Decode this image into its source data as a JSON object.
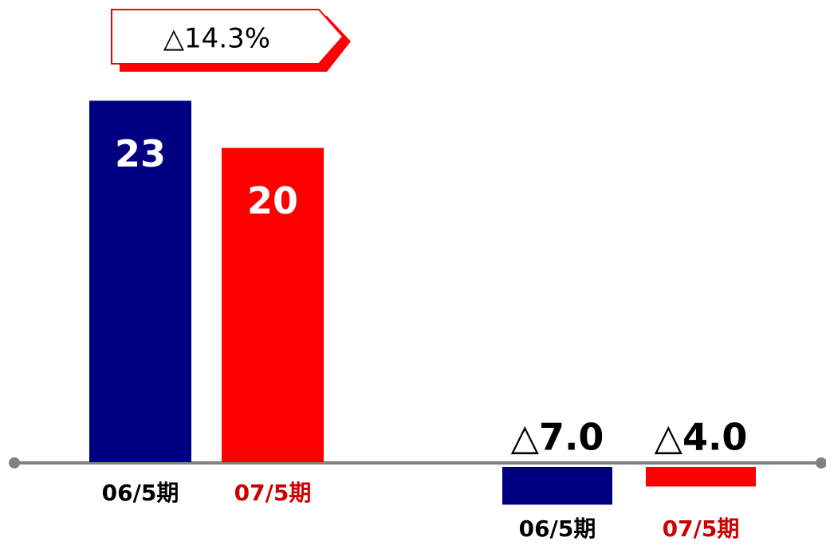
{
  "chart_data": [
    {
      "type": "bar",
      "annotation": "△14.3%",
      "categories": [
        "06/5期",
        "07/5期"
      ],
      "values": [
        23,
        20
      ],
      "colors": [
        "#000080",
        "#ff0000"
      ],
      "category_colors": [
        "#000000",
        "#cc0000"
      ],
      "ylim": [
        0,
        25
      ]
    },
    {
      "type": "bar",
      "categories": [
        "06/5期",
        "07/5期"
      ],
      "values": [
        -7.0,
        -4.0
      ],
      "value_labels": [
        "△7.0",
        "△4.0"
      ],
      "colors": [
        "#000080",
        "#ff0000"
      ],
      "category_colors": [
        "#000000",
        "#cc0000"
      ],
      "ylim": [
        -8,
        0
      ]
    }
  ]
}
